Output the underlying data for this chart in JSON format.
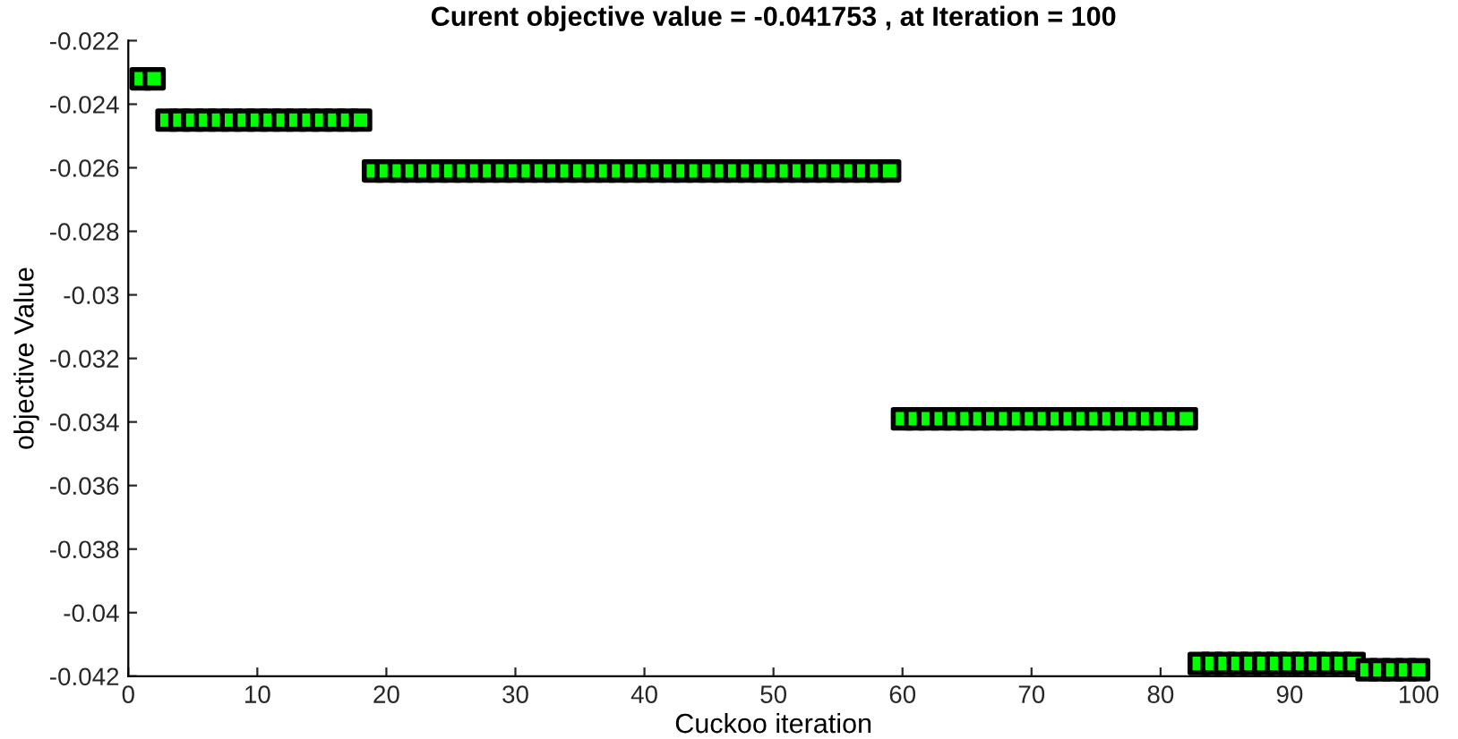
{
  "chart_data": {
    "type": "scatter",
    "title": "Curent objective value = -0.041753 , at Iteration = 100",
    "xlabel": "Cuckoo iteration",
    "ylabel": "objective Value",
    "x": [
      1,
      2,
      3,
      4,
      5,
      6,
      7,
      8,
      9,
      10,
      11,
      12,
      13,
      14,
      15,
      16,
      17,
      18,
      19,
      20,
      21,
      22,
      23,
      24,
      25,
      26,
      27,
      28,
      29,
      30,
      31,
      32,
      33,
      34,
      35,
      36,
      37,
      38,
      39,
      40,
      41,
      42,
      43,
      44,
      45,
      46,
      47,
      48,
      49,
      50,
      51,
      52,
      53,
      54,
      55,
      56,
      57,
      58,
      59,
      60,
      61,
      62,
      63,
      64,
      65,
      66,
      67,
      68,
      69,
      70,
      71,
      72,
      73,
      74,
      75,
      76,
      77,
      78,
      79,
      80,
      81,
      82,
      83,
      84,
      85,
      86,
      87,
      88,
      89,
      90,
      91,
      92,
      93,
      94,
      95,
      96,
      97,
      98,
      99,
      100
    ],
    "series": [
      {
        "color": "#00ff00",
        "values": [
          -0.0232,
          -0.0232,
          -0.0245,
          -0.0245,
          -0.0245,
          -0.0245,
          -0.0245,
          -0.0245,
          -0.0245,
          -0.0245,
          -0.0245,
          -0.0245,
          -0.0245,
          -0.0245,
          -0.0245,
          -0.0245,
          -0.0245,
          -0.0245,
          -0.0261,
          -0.0261,
          -0.0261,
          -0.0261,
          -0.0261,
          -0.0261,
          -0.0261,
          -0.0261,
          -0.0261,
          -0.0261,
          -0.0261,
          -0.0261,
          -0.0261,
          -0.0261,
          -0.0261,
          -0.0261,
          -0.0261,
          -0.0261,
          -0.0261,
          -0.0261,
          -0.0261,
          -0.0261,
          -0.0261,
          -0.0261,
          -0.0261,
          -0.0261,
          -0.0261,
          -0.0261,
          -0.0261,
          -0.0261,
          -0.0261,
          -0.0261,
          -0.0261,
          -0.0261,
          -0.0261,
          -0.0261,
          -0.0261,
          -0.0261,
          -0.0261,
          -0.0261,
          -0.0261,
          -0.0339,
          -0.0339,
          -0.0339,
          -0.0339,
          -0.0339,
          -0.0339,
          -0.0339,
          -0.0339,
          -0.0339,
          -0.0339,
          -0.0339,
          -0.0339,
          -0.0339,
          -0.0339,
          -0.0339,
          -0.0339,
          -0.0339,
          -0.0339,
          -0.0339,
          -0.0339,
          -0.0339,
          -0.0339,
          -0.0339,
          -0.0416,
          -0.0416,
          -0.0416,
          -0.0416,
          -0.0416,
          -0.0416,
          -0.0416,
          -0.0416,
          -0.0416,
          -0.0416,
          -0.0416,
          -0.0416,
          -0.0416,
          -0.0418,
          -0.0418,
          -0.0418,
          -0.0418,
          -0.0418
        ]
      }
    ],
    "marker": "square",
    "grid": false,
    "legend": false,
    "xlim": [
      0,
      100
    ],
    "xticks": [
      0,
      10,
      20,
      30,
      40,
      50,
      60,
      70,
      80,
      90,
      100
    ],
    "ylim": [
      -0.042,
      -0.022
    ],
    "yticks": [
      -0.042,
      -0.04,
      -0.038,
      -0.036,
      -0.034,
      -0.032,
      -0.03,
      -0.028,
      -0.026,
      -0.024,
      -0.022
    ]
  }
}
